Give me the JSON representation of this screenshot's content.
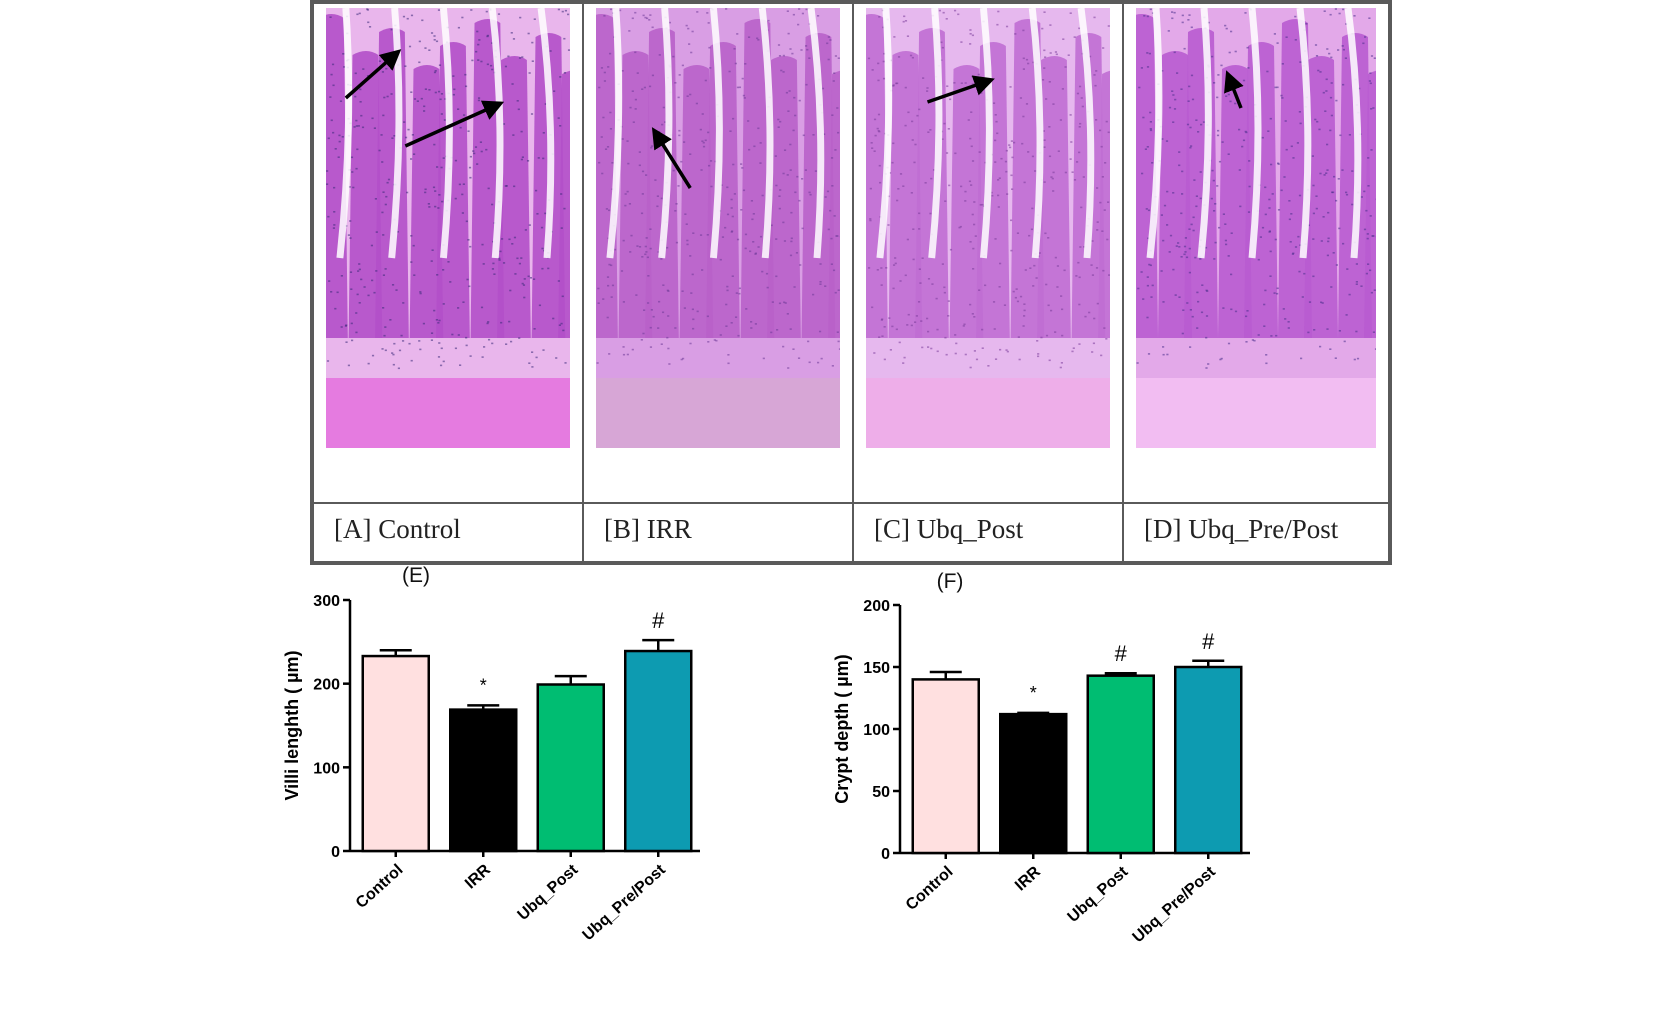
{
  "micrographs": [
    {
      "label": "[A] Control",
      "palette": {
        "bg": "#e9b6ec",
        "tissue": "#b24fc9",
        "dark": "#3b2a7a",
        "base": "#e57be0"
      }
    },
    {
      "label": "[B] IRR",
      "palette": {
        "bg": "#d99ee4",
        "tissue": "#b860c9",
        "dark": "#6e3a98",
        "base": "#d7a6d6"
      }
    },
    {
      "label": "[C] Ubq_Post",
      "palette": {
        "bg": "#e6b8ee",
        "tissue": "#c06ed3",
        "dark": "#7a3c9a",
        "base": "#eeaee9"
      }
    },
    {
      "label": "[D] Ubq_Pre/Post",
      "palette": {
        "bg": "#e3a9e9",
        "tissue": "#b85bd0",
        "dark": "#4b2f8c",
        "base": "#f2bdf2"
      }
    }
  ],
  "chart_data": [
    {
      "panel": "(E)",
      "type": "bar",
      "categories": [
        "Control",
        "IRR",
        "Ubq_Post",
        "Ubq_Pre/Post"
      ],
      "values": [
        233,
        169,
        199,
        239
      ],
      "errors": [
        7,
        5,
        10,
        13
      ],
      "annotations": [
        "",
        "*",
        "",
        "#"
      ],
      "colors": [
        "#ffe0e0",
        "#000000",
        "#00bd72",
        "#0d9bb1"
      ],
      "ylabel": "Villi lenghth ( µm)",
      "ylim": [
        0,
        300
      ],
      "yticks": [
        "0",
        "100",
        "200",
        "300"
      ]
    },
    {
      "panel": "(F)",
      "type": "bar",
      "categories": [
        "Control",
        "IRR",
        "Ubq_Post",
        "Ubq_Pre/Post"
      ],
      "values": [
        140,
        112,
        143,
        150
      ],
      "errors": [
        6,
        1,
        2,
        5
      ],
      "annotations": [
        "",
        "*",
        "#",
        "#"
      ],
      "colors": [
        "#ffe0e0",
        "#000000",
        "#00bd72",
        "#0d9bb1"
      ],
      "ylabel": "Crypt  depth ( µm)",
      "ylim": [
        0,
        200
      ],
      "yticks": [
        "0",
        "50",
        "100",
        "150",
        "200"
      ]
    }
  ]
}
